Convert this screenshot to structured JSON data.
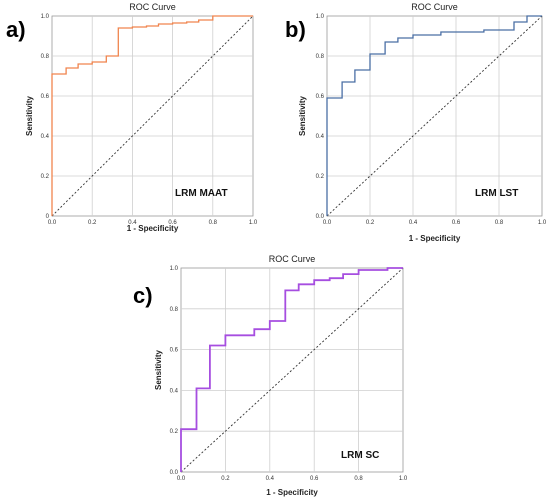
{
  "chart_data": [
    {
      "type": "line",
      "panel_label": "a)",
      "title": "ROC Curve",
      "xlabel": "1 - Specificity",
      "ylabel": "Sensitivity",
      "annotation": "LRM MAAT",
      "xlim": [
        0,
        1
      ],
      "ylim": [
        0,
        1
      ],
      "xticks": [
        "0.0",
        "0.2",
        "0.4",
        "0.6",
        "0.8",
        "1.0"
      ],
      "yticks": [
        "0",
        "0.2",
        "0.4",
        "0.6",
        "0.8",
        "1.0"
      ],
      "grid": true,
      "color": "#f0844d",
      "reference_line": true,
      "series": [
        {
          "x": [
            0,
            0,
            0.07,
            0.07,
            0.13,
            0.13,
            0.2,
            0.2,
            0.27,
            0.27,
            0.33,
            0.33,
            0.4,
            0.4,
            0.47,
            0.47,
            0.53,
            0.53,
            0.6,
            0.6,
            0.67,
            0.67,
            0.73,
            0.73,
            0.8,
            0.8,
            1.0
          ],
          "y": [
            0,
            0.71,
            0.71,
            0.74,
            0.74,
            0.76,
            0.76,
            0.77,
            0.77,
            0.8,
            0.8,
            0.94,
            0.94,
            0.945,
            0.945,
            0.95,
            0.95,
            0.96,
            0.96,
            0.965,
            0.965,
            0.97,
            0.97,
            0.98,
            0.98,
            1.0,
            1.0
          ]
        }
      ]
    },
    {
      "type": "line",
      "panel_label": "b)",
      "title": "ROC Curve",
      "xlabel": "1 - Specificity",
      "ylabel": "Sensitivity",
      "annotation": "LRM LST",
      "xlim": [
        0,
        1
      ],
      "ylim": [
        0,
        1
      ],
      "xticks": [
        "0.0",
        "0.2",
        "0.4",
        "0.6",
        "0.8",
        "1.0"
      ],
      "yticks": [
        "0.0",
        "0.2",
        "0.4",
        "0.6",
        "0.8",
        "1.0"
      ],
      "grid": true,
      "color": "#4a6fa5",
      "reference_line": true,
      "series": [
        {
          "x": [
            0,
            0,
            0.07,
            0.07,
            0.13,
            0.13,
            0.2,
            0.2,
            0.27,
            0.27,
            0.33,
            0.33,
            0.4,
            0.4,
            0.53,
            0.53,
            0.73,
            0.73,
            0.87,
            0.87,
            0.93,
            0.93,
            1.0
          ],
          "y": [
            0,
            0.59,
            0.59,
            0.67,
            0.67,
            0.73,
            0.73,
            0.81,
            0.81,
            0.87,
            0.87,
            0.89,
            0.89,
            0.905,
            0.905,
            0.92,
            0.92,
            0.93,
            0.93,
            0.97,
            0.97,
            1.0,
            1.0
          ]
        }
      ]
    },
    {
      "type": "line",
      "panel_label": "c)",
      "title": "ROC Curve",
      "xlabel": "1 - Specificity",
      "ylabel": "Sensitivity",
      "annotation": "LRM SC",
      "xlim": [
        0,
        1
      ],
      "ylim": [
        0,
        1
      ],
      "xticks": [
        "0.0",
        "0.2",
        "0.4",
        "0.6",
        "0.8",
        "1.0"
      ],
      "yticks": [
        "0.0",
        "0.2",
        "0.4",
        "0.6",
        "0.8",
        "1.0"
      ],
      "grid": true,
      "color": "#a64ee0",
      "reference_line": true,
      "series": [
        {
          "x": [
            0,
            0,
            0.07,
            0.07,
            0.13,
            0.13,
            0.2,
            0.2,
            0.33,
            0.33,
            0.4,
            0.4,
            0.47,
            0.47,
            0.53,
            0.53,
            0.6,
            0.6,
            0.67,
            0.67,
            0.73,
            0.73,
            0.8,
            0.8,
            0.93,
            0.93,
            1.0
          ],
          "y": [
            0,
            0.21,
            0.21,
            0.41,
            0.41,
            0.62,
            0.62,
            0.67,
            0.67,
            0.7,
            0.7,
            0.74,
            0.74,
            0.89,
            0.89,
            0.92,
            0.92,
            0.94,
            0.94,
            0.95,
            0.95,
            0.97,
            0.97,
            0.99,
            0.99,
            1.0,
            1.0
          ]
        }
      ]
    }
  ]
}
